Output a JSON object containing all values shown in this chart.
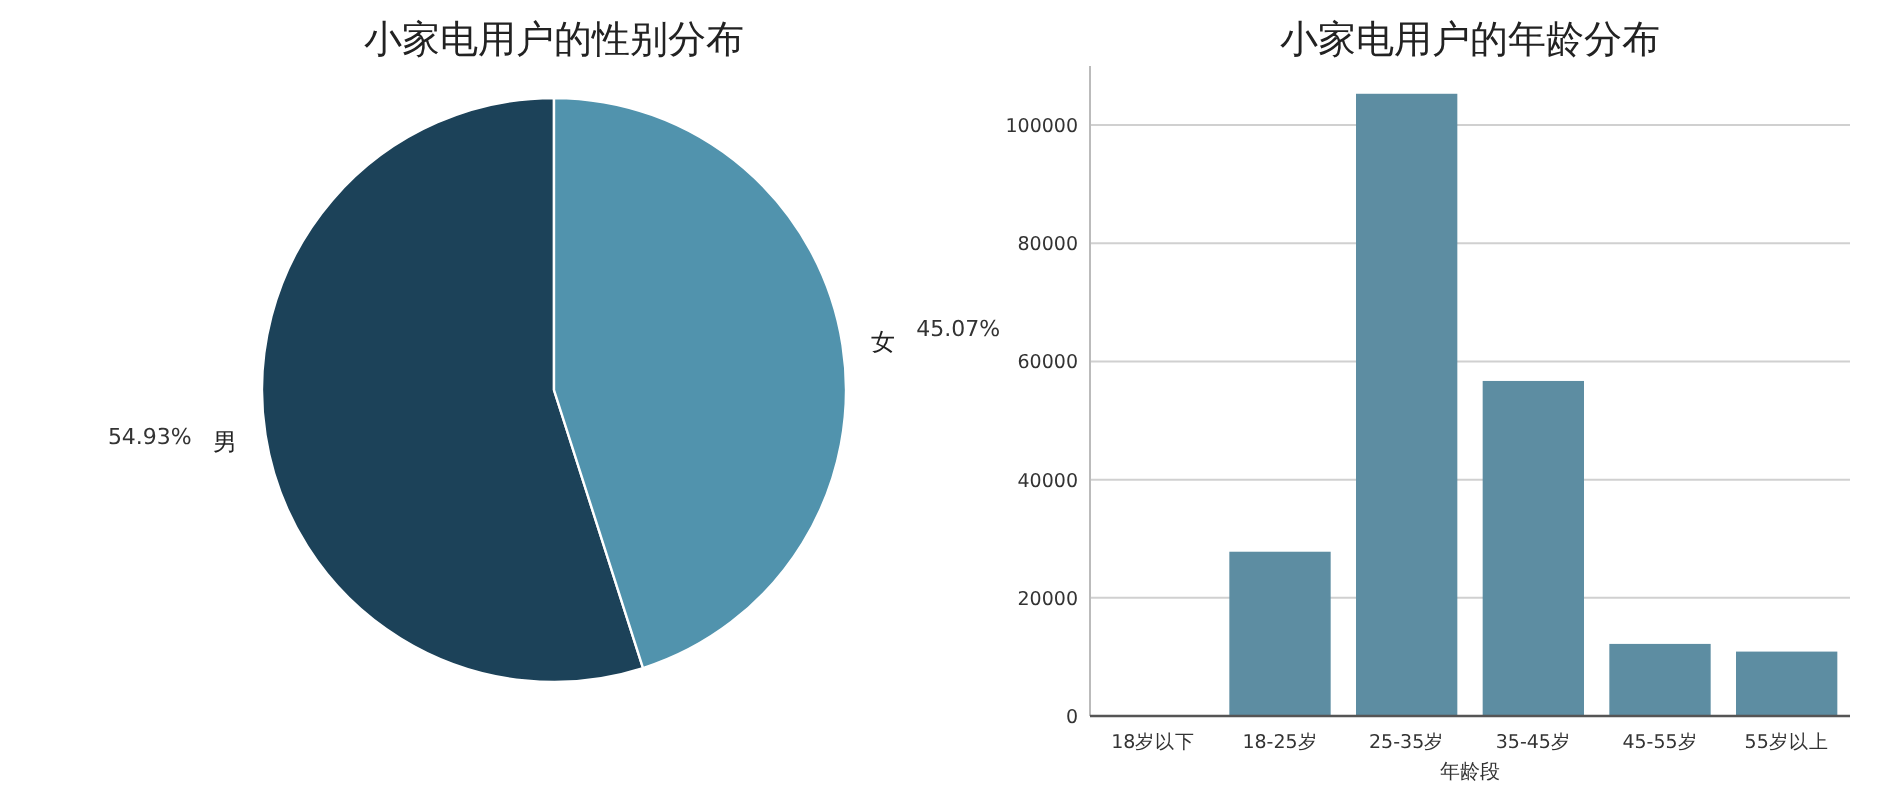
{
  "chart_data": [
    {
      "type": "pie",
      "title": "小家电用户的性别分布",
      "categories": [
        "男",
        "女"
      ],
      "values": [
        54.93,
        45.07
      ],
      "colors": [
        "#1c4259",
        "#5193ad"
      ],
      "value_labels": [
        "54.93%",
        "45.07%"
      ]
    },
    {
      "type": "bar",
      "title": "小家电用户的年龄分布",
      "xlabel": "年龄段",
      "categories": [
        "18岁以下",
        "18-25岁",
        "25-35岁",
        "35-45岁",
        "45-55岁",
        "55岁以上"
      ],
      "values": [
        0,
        27800,
        105300,
        56700,
        12200,
        10900
      ],
      "color": "#5d8da2",
      "ylim": [
        0,
        110000
      ],
      "yticks": [
        0,
        20000,
        40000,
        60000,
        80000,
        100000
      ],
      "grid": "y"
    }
  ]
}
